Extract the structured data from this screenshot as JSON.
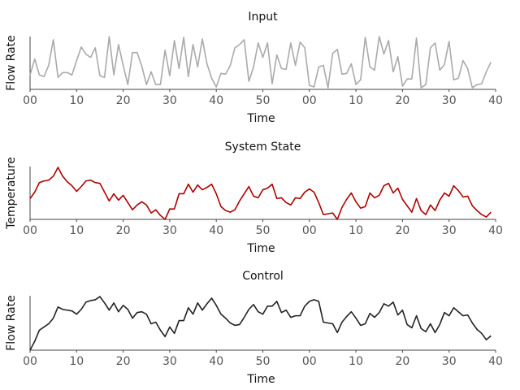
{
  "chart_data": [
    {
      "type": "line",
      "title": "Input",
      "x_label": "Time",
      "y_label": "Flow Rate",
      "x": [
        0,
        1,
        2,
        3,
        4,
        5,
        6,
        7,
        8,
        9,
        10,
        11,
        12,
        13,
        14,
        15,
        16,
        17,
        18,
        19,
        20,
        21,
        22,
        23,
        24,
        25,
        26,
        27,
        28,
        29,
        30,
        31,
        32,
        33,
        34,
        35,
        36,
        37,
        38,
        39,
        40,
        41,
        42,
        43,
        44,
        45,
        46,
        47,
        48,
        49,
        50,
        51,
        52,
        53,
        54,
        55,
        56,
        57,
        58,
        59,
        60,
        61,
        62,
        63,
        64,
        65,
        66,
        67,
        68,
        69,
        70,
        71,
        72,
        73,
        74,
        75,
        76,
        77,
        78,
        79,
        80,
        81,
        82,
        83,
        84,
        85,
        86,
        87,
        88,
        89,
        90,
        91,
        92,
        93,
        94,
        95,
        96,
        97,
        98,
        99
      ],
      "series": [
        {
          "name": "Input",
          "color": "#aaaaaa",
          "values": [
            18,
            38,
            18,
            16,
            30,
            62,
            15,
            21,
            21,
            18,
            36,
            53,
            44,
            40,
            52,
            17,
            15,
            66,
            18,
            56,
            30,
            6,
            46,
            46,
            29,
            6,
            22,
            6,
            6,
            49,
            17,
            61,
            26,
            65,
            16,
            56,
            28,
            63,
            32,
            14,
            3,
            20,
            19,
            30,
            52,
            56,
            62,
            10,
            28,
            58,
            40,
            58,
            7,
            43,
            26,
            25,
            58,
            30,
            59,
            52,
            5,
            3,
            28,
            30,
            2,
            45,
            50,
            19,
            20,
            32,
            6,
            12,
            65,
            28,
            24,
            66,
            44,
            61,
            22,
            41,
            4,
            13,
            13,
            64,
            2,
            6,
            52,
            58,
            24,
            31,
            60,
            12,
            14,
            36,
            26,
            2,
            6,
            7,
            22,
            34
          ]
        }
      ],
      "xlim": [
        0,
        100
      ],
      "ylim": [
        0,
        66
      ],
      "xticks": [
        {
          "value": 0,
          "label": "00"
        },
        10,
        20,
        30,
        40,
        50,
        {
          "value": 60,
          "label": "00"
        },
        {
          "value": 70,
          "label": "10"
        },
        {
          "value": 80,
          "label": "20"
        },
        {
          "value": 90,
          "label": "30"
        },
        {
          "value": 100,
          "label": "40"
        }
      ]
    },
    {
      "type": "line",
      "title": "System State",
      "x_label": "Time",
      "y_label": "Temperature",
      "x": [
        0,
        1,
        2,
        3,
        4,
        5,
        6,
        7,
        8,
        9,
        10,
        11,
        12,
        13,
        14,
        15,
        16,
        17,
        18,
        19,
        20,
        21,
        22,
        23,
        24,
        25,
        26,
        27,
        28,
        29,
        30,
        31,
        32,
        33,
        34,
        35,
        36,
        37,
        38,
        39,
        40,
        41,
        42,
        43,
        44,
        45,
        46,
        47,
        48,
        49,
        50,
        51,
        52,
        53,
        54,
        55,
        56,
        57,
        58,
        59,
        60,
        61,
        62,
        63,
        64,
        65,
        66,
        67,
        68,
        69,
        70,
        71,
        72,
        73,
        74,
        75,
        76,
        77,
        78,
        79,
        80,
        81,
        82,
        83,
        84,
        85,
        86,
        87,
        88,
        89,
        90,
        91,
        92,
        93,
        94,
        95,
        96,
        97,
        98,
        99
      ],
      "series": [
        {
          "name": "System State",
          "color": "#b00000",
          "values": [
            26,
            34,
            46,
            48,
            49,
            54,
            65,
            54,
            47,
            42,
            35,
            41,
            48,
            49,
            46,
            45,
            34,
            23,
            32,
            24,
            30,
            21,
            12,
            18,
            22,
            18,
            8,
            12,
            5,
            0,
            13,
            13,
            32,
            32,
            44,
            34,
            43,
            37,
            40,
            44,
            32,
            16,
            11,
            9,
            12,
            23,
            32,
            41,
            29,
            27,
            37,
            39,
            44,
            26,
            27,
            21,
            18,
            27,
            26,
            34,
            38,
            34,
            21,
            6,
            7,
            8,
            0,
            15,
            25,
            33,
            22,
            14,
            16,
            33,
            27,
            30,
            42,
            45,
            33,
            39,
            25,
            17,
            9,
            26,
            11,
            6,
            18,
            11,
            24,
            33,
            29,
            42,
            36,
            28,
            29,
            17,
            11,
            6,
            3,
            9
          ]
        }
      ],
      "xlim": [
        0,
        100
      ],
      "ylim": [
        0,
        66
      ],
      "xticks": [
        {
          "value": 0,
          "label": "00"
        },
        10,
        20,
        30,
        40,
        50,
        {
          "value": 60,
          "label": "00"
        },
        {
          "value": 70,
          "label": "10"
        },
        {
          "value": 80,
          "label": "20"
        },
        {
          "value": 90,
          "label": "30"
        },
        {
          "value": 100,
          "label": "40"
        }
      ]
    },
    {
      "type": "line",
      "title": "Control",
      "x_label": "Time",
      "y_label": "Flow Rate",
      "x": [
        0,
        1,
        2,
        3,
        4,
        5,
        6,
        7,
        8,
        9,
        10,
        11,
        12,
        13,
        14,
        15,
        16,
        17,
        18,
        19,
        20,
        21,
        22,
        23,
        24,
        25,
        26,
        27,
        28,
        29,
        30,
        31,
        32,
        33,
        34,
        35,
        36,
        37,
        38,
        39,
        40,
        41,
        42,
        43,
        44,
        45,
        46,
        47,
        48,
        49,
        50,
        51,
        52,
        53,
        54,
        55,
        56,
        57,
        58,
        59,
        60,
        61,
        62,
        63,
        64,
        65,
        66,
        67,
        68,
        69,
        70,
        71,
        72,
        73,
        74,
        75,
        76,
        77,
        78,
        79,
        80,
        81,
        82,
        83,
        84,
        85,
        86,
        87,
        88,
        89,
        90,
        91,
        92,
        93,
        94,
        95,
        96,
        97,
        98,
        99
      ],
      "series": [
        {
          "name": "Control",
          "color": "#222222",
          "values": [
            0,
            11,
            25,
            29,
            33,
            40,
            54,
            51,
            50,
            49,
            45,
            51,
            60,
            62,
            63,
            67,
            59,
            50,
            59,
            48,
            56,
            51,
            40,
            47,
            48,
            45,
            33,
            35,
            25,
            17,
            29,
            21,
            37,
            37,
            53,
            45,
            59,
            50,
            58,
            65,
            56,
            45,
            40,
            34,
            31,
            32,
            41,
            51,
            57,
            48,
            45,
            55,
            55,
            61,
            47,
            50,
            41,
            43,
            43,
            55,
            61,
            63,
            61,
            35,
            34,
            33,
            22,
            35,
            42,
            48,
            40,
            31,
            33,
            46,
            41,
            47,
            58,
            55,
            60,
            44,
            50,
            32,
            28,
            43,
            27,
            23,
            33,
            22,
            32,
            47,
            43,
            53,
            48,
            43,
            44,
            34,
            26,
            21,
            13,
            18
          ]
        }
      ],
      "xlim": [
        0,
        100
      ],
      "ylim": [
        0,
        68
      ],
      "xticks": [
        {
          "value": 0,
          "label": "00"
        },
        10,
        20,
        30,
        40,
        50,
        {
          "value": 60,
          "label": "00"
        },
        {
          "value": 70,
          "label": "10"
        },
        {
          "value": 80,
          "label": "20"
        },
        {
          "value": 90,
          "label": "30"
        },
        {
          "value": 100,
          "label": "40"
        }
      ]
    }
  ]
}
